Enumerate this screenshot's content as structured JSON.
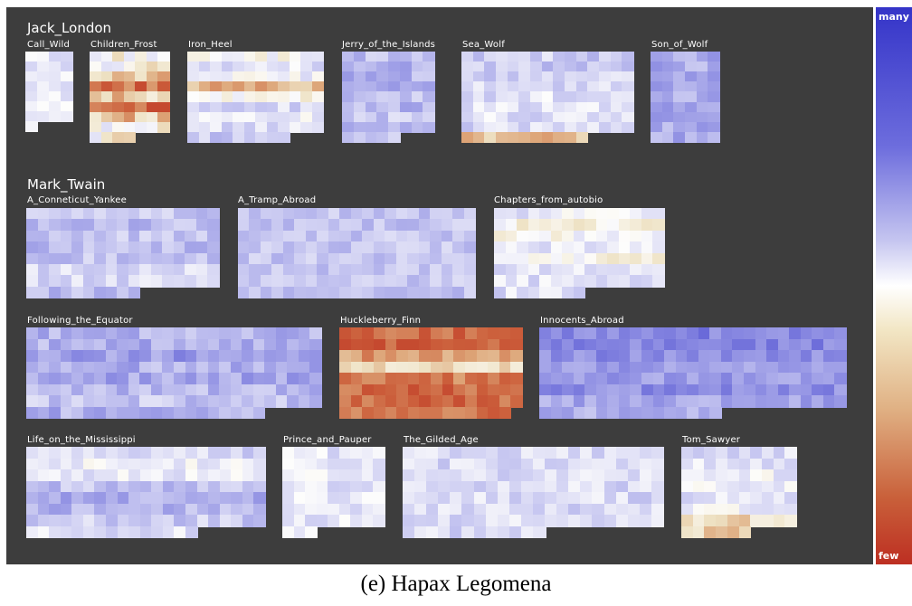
{
  "chart_data": {
    "type": "heatmap",
    "title": "",
    "legend": {
      "top_label": "many",
      "bottom_label": "few",
      "placement": "right"
    },
    "groups": [
      {
        "name": "Jack_London",
        "books": [
          {
            "name": "Call_Wild",
            "cols": 4,
            "rows": 8,
            "cells": 29,
            "base": 0.12,
            "var": 0.12,
            "seed": 3
          },
          {
            "name": "Children_Frost",
            "cols": 7,
            "rows": 9,
            "cells": 60,
            "base": -0.12,
            "var": 0.22,
            "seed": 7,
            "rowBias": [
              0.1,
              0.05,
              -0.25,
              -0.5,
              -0.15,
              -0.55,
              -0.2,
              0.1,
              0.05
            ]
          },
          {
            "name": "Iron_Heel",
            "cols": 12,
            "rows": 9,
            "cells": 105,
            "base": 0.05,
            "var": 0.15,
            "seed": 11,
            "rowBias": [
              -0.05,
              0.1,
              0.0,
              -0.45,
              -0.1,
              0.15,
              0.05,
              0.1,
              0.2
            ]
          },
          {
            "name": "Jerry_of_the_Islands",
            "cols": 8,
            "rows": 9,
            "cells": 69,
            "base": 0.3,
            "var": 0.14,
            "seed": 13,
            "rowBias": [
              0.0,
              0.05,
              0.05,
              0.1,
              0.0,
              0.05,
              -0.05,
              0.05,
              0.0
            ]
          },
          {
            "name": "Sea_Wolf",
            "cols": 15,
            "rows": 9,
            "cells": 131,
            "base": 0.2,
            "var": 0.15,
            "seed": 17,
            "rowBias": [
              0.05,
              0.05,
              0.0,
              0.0,
              -0.05,
              -0.05,
              -0.05,
              0.0,
              -0.55
            ]
          },
          {
            "name": "Son_of_Wolf",
            "cols": 6,
            "rows": 9,
            "cells": 54,
            "base": 0.4,
            "var": 0.13,
            "seed": 19
          }
        ]
      },
      {
        "name": "Mark_Twain",
        "books": [
          {
            "name": "A_Conneticut_Yankee",
            "cols": 17,
            "rows": 8,
            "cells": 129,
            "base": 0.28,
            "var": 0.13,
            "seed": 23,
            "rowBias": [
              0.0,
              0.05,
              0.0,
              0.05,
              0.0,
              -0.1,
              -0.1,
              0.05
            ]
          },
          {
            "name": "A_Tramp_Abroad",
            "cols": 21,
            "rows": 8,
            "cells": 168,
            "base": 0.28,
            "var": 0.12,
            "seed": 29
          },
          {
            "name": "Chapters_from_autobio",
            "cols": 15,
            "rows": 8,
            "cells": 113,
            "base": 0.1,
            "var": 0.15,
            "seed": 31,
            "rowBias": [
              0.0,
              -0.15,
              -0.1,
              0.05,
              -0.15,
              0.05,
              0.05,
              0.05
            ]
          },
          {
            "name": "Following_the_Equator",
            "cols": 26,
            "rows": 8,
            "cells": 203,
            "base": 0.38,
            "var": 0.14,
            "seed": 37,
            "rowBias": [
              0.0,
              0.0,
              0.1,
              0.0,
              0.05,
              -0.05,
              -0.1,
              0.0
            ]
          },
          {
            "name": "Huckleberry_Finn",
            "cols": 16,
            "rows": 8,
            "cells": 127,
            "base": -0.68,
            "var": 0.14,
            "seed": 41,
            "rowBias": [
              0.0,
              -0.05,
              0.2,
              0.45,
              0.1,
              0.0,
              0.0,
              0.05
            ]
          },
          {
            "name": "Innocents_Abroad",
            "cols": 27,
            "rows": 8,
            "cells": 205,
            "base": 0.48,
            "var": 0.12,
            "seed": 43,
            "rowBias": [
              0.1,
              0.1,
              0.05,
              0.0,
              0.0,
              0.05,
              -0.05,
              -0.1
            ]
          },
          {
            "name": "Life_on_the_Mississippi",
            "cols": 21,
            "rows": 8,
            "cells": 162,
            "base": 0.25,
            "var": 0.14,
            "seed": 47,
            "rowBias": [
              -0.05,
              -0.2,
              -0.15,
              0.05,
              0.15,
              0.1,
              0.0,
              -0.1
            ]
          },
          {
            "name": "Prince_and_Pauper",
            "cols": 9,
            "rows": 8,
            "cells": 66,
            "base": 0.12,
            "var": 0.14,
            "seed": 53
          },
          {
            "name": "The_Gilded_Age",
            "cols": 22,
            "rows": 8,
            "cells": 166,
            "base": 0.18,
            "var": 0.14,
            "seed": 59
          },
          {
            "name": "Tom_Sawyer",
            "cols": 10,
            "rows": 8,
            "cells": 76,
            "base": 0.08,
            "var": 0.14,
            "seed": 61,
            "rowBias": [
              0.1,
              0.05,
              0.0,
              0.0,
              0.05,
              0.0,
              -0.3,
              -0.35
            ]
          }
        ]
      }
    ]
  },
  "caption": "(e)  Hapax Legomena"
}
